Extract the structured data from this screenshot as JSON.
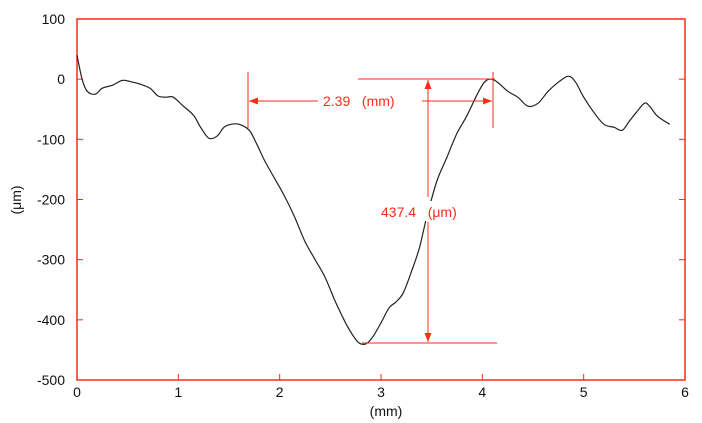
{
  "chart_data": {
    "type": "line",
    "xlabel": "(mm)",
    "ylabel": "(μm)",
    "xlim": [
      0,
      6
    ],
    "ylim": [
      -500,
      100
    ],
    "xticks": [
      0,
      1,
      2,
      3,
      4,
      5,
      6
    ],
    "yticks": [
      100,
      0,
      -100,
      -200,
      -300,
      -400,
      -500
    ],
    "grid": false,
    "frame_color": "#ff2a1a",
    "line_color": "#222222",
    "annotation_color": "#ff2a1a",
    "series": [
      {
        "x": [
          0,
          0.05,
          0.1,
          0.18,
          0.25,
          0.35,
          0.45,
          0.55,
          0.62,
          0.72,
          0.8,
          0.88,
          0.95,
          1.05,
          1.15,
          1.22,
          1.3,
          1.38,
          1.45,
          1.52,
          1.6,
          1.7,
          1.78,
          1.85,
          1.95,
          2.05,
          2.15,
          2.25,
          2.35,
          2.45,
          2.55,
          2.65,
          2.72,
          2.78,
          2.85,
          2.92,
          3.0,
          3.08,
          3.15,
          3.22,
          3.3,
          3.38,
          3.45,
          3.55,
          3.65,
          3.75,
          3.85,
          3.95,
          4.02,
          4.08,
          4.15,
          4.25,
          4.35,
          4.45,
          4.55,
          4.65,
          4.75,
          4.85,
          4.92,
          5.0,
          5.1,
          5.2,
          5.3,
          5.38,
          5.45,
          5.52,
          5.6,
          5.65,
          5.72,
          5.8,
          5.85
        ],
        "y": [
          40,
          0,
          -20,
          -25,
          -15,
          -10,
          -2,
          -5,
          -8,
          -15,
          -28,
          -30,
          -30,
          -45,
          -60,
          -80,
          -98,
          -95,
          -80,
          -75,
          -75,
          -85,
          -110,
          -135,
          -165,
          -195,
          -230,
          -270,
          -300,
          -330,
          -370,
          -405,
          -425,
          -438,
          -440,
          -428,
          -405,
          -380,
          -370,
          -355,
          -320,
          -280,
          -230,
          -170,
          -130,
          -90,
          -60,
          -25,
          -5,
          0,
          -5,
          -20,
          -30,
          -45,
          -40,
          -20,
          -5,
          5,
          -5,
          -30,
          -55,
          -75,
          -80,
          -85,
          -70,
          -55,
          -40,
          -45,
          -60,
          -70,
          -75
        ]
      }
    ],
    "annotations": [
      {
        "label": "2.39   (mm)",
        "x_start": 1.68,
        "x_end": 4.07,
        "y": -35
      },
      {
        "label": "437.4   (μm)",
        "x": 3.43,
        "y_start": 0,
        "y_end": -437.4
      }
    ]
  }
}
